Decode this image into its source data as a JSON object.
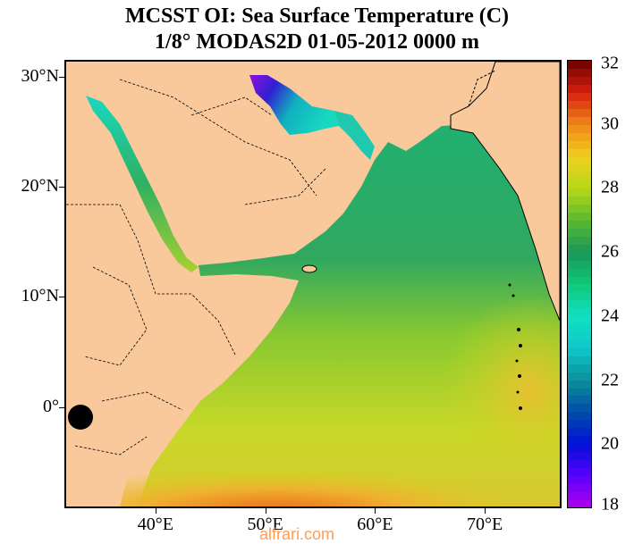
{
  "header": {
    "title_line1": "MCSST OI:  Sea Surface Temperature (C)",
    "title_line2": "1/8° MODAS2D 01-05-2012 0000 m"
  },
  "map": {
    "lat_labels": [
      "30°N",
      "20°N",
      "10°N",
      "0°"
    ],
    "lat_values": [
      30,
      20,
      10,
      0
    ],
    "lon_labels": [
      "40°E",
      "50°E",
      "60°E",
      "70°E"
    ],
    "lon_values": [
      40,
      50,
      60,
      70
    ],
    "lat_range": [
      -9.2,
      31.5
    ],
    "lon_range": [
      31.7,
      77.0
    ],
    "land_color": "#f9c89b"
  },
  "colorbar": {
    "labels": [
      "32",
      "30",
      "28",
      "26",
      "24",
      "22",
      "20",
      "18"
    ],
    "values": [
      32,
      30,
      28,
      26,
      24,
      22,
      20,
      18
    ],
    "range": [
      18,
      32
    ],
    "stops": [
      {
        "v": 18,
        "c": "#b000e8"
      },
      {
        "v": 19,
        "c": "#5a00ff"
      },
      {
        "v": 20,
        "c": "#0010d8"
      },
      {
        "v": 21,
        "c": "#004fa8"
      },
      {
        "v": 22,
        "c": "#0a8f9a"
      },
      {
        "v": 23,
        "c": "#0fc8c8"
      },
      {
        "v": 24,
        "c": "#10e0c0"
      },
      {
        "v": 25,
        "c": "#10c878"
      },
      {
        "v": 26,
        "c": "#18985a"
      },
      {
        "v": 27,
        "c": "#5ab830"
      },
      {
        "v": 28,
        "c": "#b8d818"
      },
      {
        "v": 29,
        "c": "#f0d020"
      },
      {
        "v": 30,
        "c": "#f08818"
      },
      {
        "v": 31,
        "c": "#d82010"
      },
      {
        "v": 32,
        "c": "#6a0000"
      }
    ]
  },
  "watermark": "alfrari.com"
}
